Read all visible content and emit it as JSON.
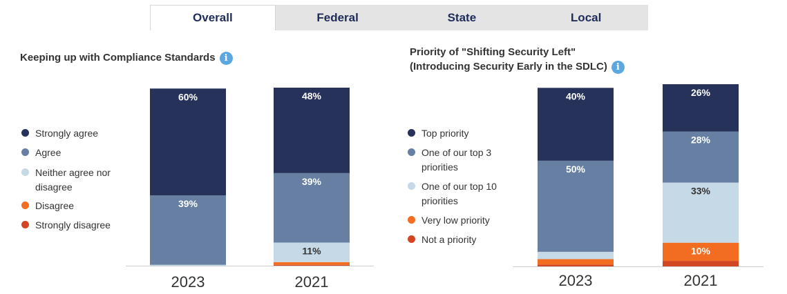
{
  "tabs": [
    {
      "label": "Overall",
      "active": true
    },
    {
      "label": "Federal",
      "active": false
    },
    {
      "label": "State",
      "active": false
    },
    {
      "label": "Local",
      "active": false
    }
  ],
  "colors": {
    "navy": "#27325a",
    "steel": "#667fa3",
    "light": "#c6d9e6",
    "orange": "#f26d21",
    "red": "#d24624",
    "info": "#5ba8e0"
  },
  "left_panel": {
    "title": "Keeping up with Compliance Standards",
    "info_icon": "i",
    "legend": [
      {
        "label": "Strongly agree",
        "color": "#27325a"
      },
      {
        "label": "Agree",
        "color": "#667fa3"
      },
      {
        "label": "Neither agree nor disagree",
        "color": "#c6d9e6"
      },
      {
        "label": "Disagree",
        "color": "#f26d21"
      },
      {
        "label": "Strongly disagree",
        "color": "#d24624"
      }
    ]
  },
  "right_panel": {
    "title_line1": "Priority of \"Shifting Security Left\"",
    "title_line2": "(Introducing Security Early in the SDLC)",
    "info_icon": "i",
    "legend": [
      {
        "label": "Top priority",
        "color": "#27325a"
      },
      {
        "label": "One of our top 3 priorities",
        "color": "#667fa3"
      },
      {
        "label": "One of our top 10 priorities",
        "color": "#c6d9e6"
      },
      {
        "label": "Very low priority",
        "color": "#f26d21"
      },
      {
        "label": "Not a priority",
        "color": "#d24624"
      }
    ]
  },
  "chart_data": [
    {
      "type": "bar",
      "stacked": true,
      "title": "Keeping up with Compliance Standards",
      "categories": [
        "2023",
        "2021"
      ],
      "series": [
        {
          "name": "Strongly agree",
          "values": [
            60,
            48
          ],
          "labels": [
            "60%",
            "48%"
          ],
          "color": "#27325a"
        },
        {
          "name": "Agree",
          "values": [
            39,
            39
          ],
          "labels": [
            "39%",
            "39%"
          ],
          "color": "#667fa3"
        },
        {
          "name": "Neither agree nor disagree",
          "values": [
            0.5,
            11
          ],
          "labels": [
            "",
            "11%"
          ],
          "color": "#c6d9e6"
        },
        {
          "name": "Disagree",
          "values": [
            0,
            1.5
          ],
          "labels": [
            "",
            ""
          ],
          "color": "#f26d21"
        },
        {
          "name": "Strongly disagree",
          "values": [
            0,
            0.5
          ],
          "labels": [
            "",
            ""
          ],
          "color": "#d24624"
        }
      ],
      "ylim": [
        0,
        100
      ],
      "legend": "left"
    },
    {
      "type": "bar",
      "stacked": true,
      "title": "Priority of \"Shifting Security Left\" (Introducing Security Early in the SDLC)",
      "categories": [
        "2023",
        "2021"
      ],
      "series": [
        {
          "name": "Top priority",
          "values": [
            40,
            26
          ],
          "labels": [
            "40%",
            "26%"
          ],
          "color": "#27325a"
        },
        {
          "name": "One of our top 3 priorities",
          "values": [
            50,
            28
          ],
          "labels": [
            "50%",
            "28%"
          ],
          "color": "#667fa3"
        },
        {
          "name": "One of our top 10 priorities",
          "values": [
            4,
            33
          ],
          "labels": [
            "",
            "33%"
          ],
          "color": "#c6d9e6"
        },
        {
          "name": "Very low priority",
          "values": [
            3,
            10
          ],
          "labels": [
            "",
            "10%"
          ],
          "color": "#f26d21"
        },
        {
          "name": "Not a priority",
          "values": [
            1,
            3
          ],
          "labels": [
            "",
            ""
          ],
          "color": "#d24624"
        }
      ],
      "ylim": [
        0,
        100
      ],
      "legend": "left"
    }
  ]
}
